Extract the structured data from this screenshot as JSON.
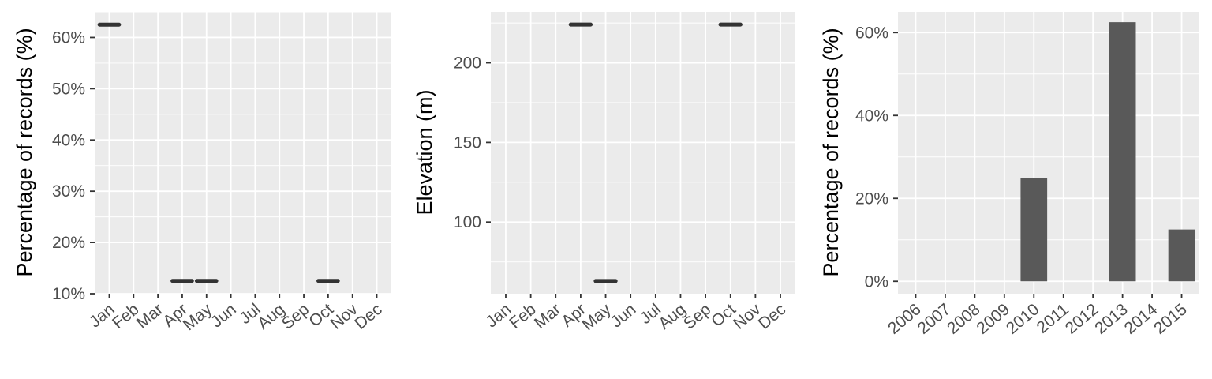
{
  "colors": {
    "panel_background": "#EBEBEB",
    "grid": "#FFFFFF",
    "mark": "#333333",
    "bar_fill": "#595959",
    "tick_text": "#4D4D4D"
  },
  "chart_data": [
    {
      "type": "scatter",
      "mark": "horizontal-segment",
      "xlabel": "",
      "ylabel": "Percentage of records (%)",
      "categories": [
        "Jan",
        "Feb",
        "Mar",
        "Apr",
        "May",
        "Jun",
        "Jul",
        "Aug",
        "Sep",
        "Oct",
        "Nov",
        "Dec"
      ],
      "ylim": [
        10,
        65
      ],
      "yticks": [
        10,
        20,
        30,
        40,
        50,
        60
      ],
      "ytick_labels": [
        "10%",
        "20%",
        "30%",
        "40%",
        "50%",
        "60%"
      ],
      "points": [
        {
          "x": "Jan",
          "y": 62.5
        },
        {
          "x": "Apr",
          "y": 12.5
        },
        {
          "x": "May",
          "y": 12.5
        },
        {
          "x": "Oct",
          "y": 12.5
        }
      ],
      "grid": true
    },
    {
      "type": "scatter",
      "mark": "horizontal-segment",
      "xlabel": "",
      "ylabel": "Elevation (m)",
      "categories": [
        "Jan",
        "Feb",
        "Mar",
        "Apr",
        "May",
        "Jun",
        "Jul",
        "Aug",
        "Sep",
        "Oct",
        "Nov",
        "Dec"
      ],
      "ylim": [
        55,
        232
      ],
      "yticks": [
        100,
        150,
        200
      ],
      "ytick_labels": [
        "100",
        "150",
        "200"
      ],
      "points": [
        {
          "x": "Apr",
          "y": 224
        },
        {
          "x": "May",
          "y": 63
        },
        {
          "x": "Oct",
          "y": 224
        }
      ],
      "grid": true
    },
    {
      "type": "bar",
      "xlabel": "",
      "ylabel": "Percentage of records (%)",
      "categories": [
        "2006",
        "2007",
        "2008",
        "2009",
        "2010",
        "2011",
        "2012",
        "2013",
        "2014",
        "2015"
      ],
      "values": [
        0,
        0,
        0,
        0,
        25,
        0,
        0,
        62.5,
        0,
        12.5
      ],
      "ylim": [
        -3,
        65
      ],
      "yticks": [
        0,
        20,
        40,
        60
      ],
      "ytick_labels": [
        "0%",
        "20%",
        "40%",
        "60%"
      ],
      "grid": true
    }
  ]
}
